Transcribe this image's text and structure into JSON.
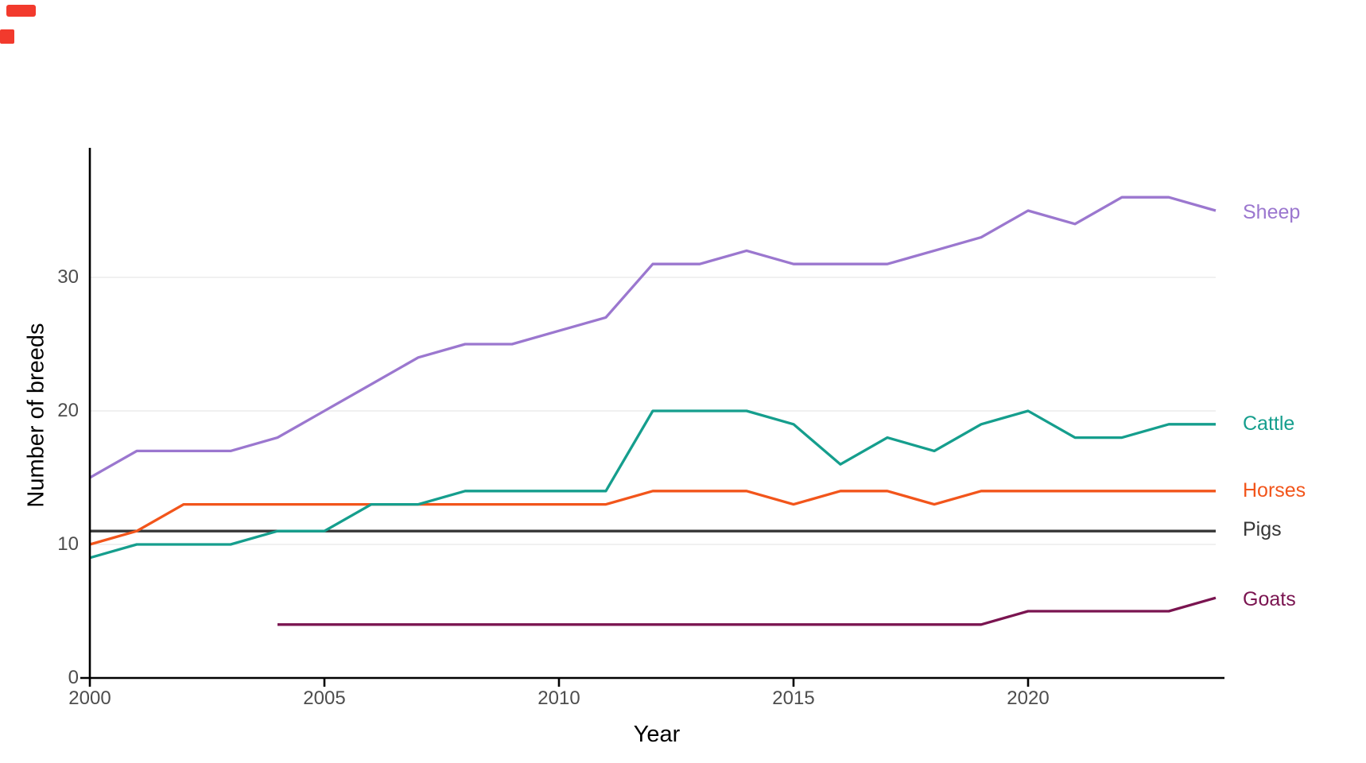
{
  "decor": {
    "red_mark_color": "#f23a2d"
  },
  "chart_data": {
    "type": "line",
    "title": "",
    "xlabel": "Year",
    "ylabel": "Number of breeds",
    "x": [
      2000,
      2001,
      2002,
      2003,
      2004,
      2005,
      2006,
      2007,
      2008,
      2009,
      2010,
      2011,
      2012,
      2013,
      2014,
      2015,
      2016,
      2017,
      2018,
      2019,
      2020,
      2021,
      2022,
      2023,
      2024
    ],
    "xlim": [
      2000,
      2024
    ],
    "ylim": [
      0,
      39.5
    ],
    "xticks": {
      "values": [
        2000,
        2005,
        2010,
        2015,
        2020
      ],
      "labels": [
        "2000",
        "2005",
        "2010",
        "2015",
        "2020"
      ]
    },
    "yticks": {
      "values": [
        0,
        10,
        20,
        30
      ],
      "labels": [
        "0",
        "10",
        "20",
        "30"
      ]
    },
    "grid": "horizontal-only",
    "grid_color": "#ececec",
    "axis_color": "#000000",
    "tick_label_color": "#4d4d4d",
    "legend_position": "direct-labels-right",
    "series": [
      {
        "name": "Pigs",
        "color": "#363636",
        "values": [
          11,
          11,
          11,
          11,
          11,
          11,
          11,
          11,
          11,
          11,
          11,
          11,
          11,
          11,
          11,
          11,
          11,
          11,
          11,
          11,
          11,
          11,
          11,
          11,
          11
        ]
      },
      {
        "name": "Horses",
        "color": "#f2551b",
        "values": [
          10,
          11,
          13,
          13,
          13,
          13,
          13,
          13,
          13,
          13,
          13,
          13,
          14,
          14,
          14,
          13,
          14,
          14,
          13,
          14,
          14,
          14,
          14,
          14,
          14
        ]
      },
      {
        "name": "Cattle",
        "color": "#159e8d",
        "values": [
          9,
          10,
          10,
          10,
          11,
          11,
          13,
          13,
          14,
          14,
          14,
          14,
          20,
          20,
          20,
          19,
          16,
          18,
          17,
          19,
          20,
          18,
          18,
          19,
          19
        ]
      },
      {
        "name": "Sheep",
        "color": "#9b77cf",
        "values": [
          15,
          17,
          17,
          17,
          18,
          20,
          22,
          24,
          25,
          25,
          26,
          27,
          31,
          31,
          32,
          31,
          31,
          31,
          32,
          33,
          35,
          34,
          36,
          36,
          35
        ]
      },
      {
        "name": "Goats",
        "color": "#7a1450",
        "values": [
          null,
          null,
          null,
          null,
          4,
          4,
          4,
          4,
          4,
          4,
          4,
          4,
          4,
          4,
          4,
          4,
          4,
          4,
          4,
          4,
          5,
          5,
          5,
          5,
          6
        ]
      }
    ],
    "series_label_order_top_to_bottom": [
      "Sheep",
      "Cattle",
      "Horses",
      "Pigs",
      "Goats"
    ]
  }
}
